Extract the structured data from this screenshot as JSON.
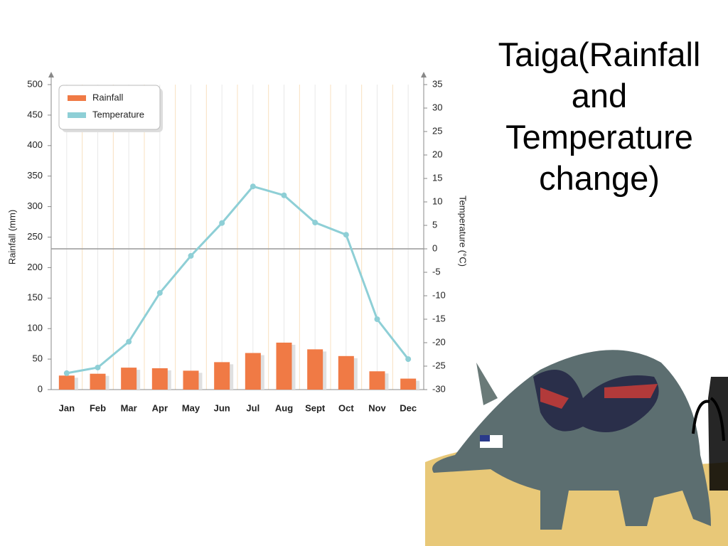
{
  "title": "Taiga(Rainfall and Temperature change)",
  "chart_data": {
    "type": "bar",
    "categories": [
      "Jan",
      "Feb",
      "Mar",
      "Apr",
      "May",
      "Jun",
      "Jul",
      "Aug",
      "Sept",
      "Oct",
      "Nov",
      "Dec"
    ],
    "y_label": "Rainfall (mm)",
    "y2_label": "Temperature (°C)",
    "ylim": [
      0,
      500
    ],
    "yticks": [
      0,
      50,
      100,
      150,
      200,
      250,
      300,
      350,
      400,
      450,
      500
    ],
    "y2lim": [
      -30,
      35
    ],
    "y2ticks": [
      -30,
      -25,
      -20,
      -15,
      -10,
      -5,
      0,
      5,
      10,
      15,
      20,
      25,
      30,
      35
    ],
    "legend": "upper left",
    "series": [
      {
        "name": "Rainfall",
        "type": "bar",
        "color": "#f07a45",
        "values": [
          23,
          26,
          36,
          35,
          31,
          45,
          60,
          77,
          66,
          55,
          30,
          18
        ]
      },
      {
        "name": "Temperature",
        "type": "line",
        "axis": "y2",
        "color": "#8ecfd6",
        "values": [
          -26.5,
          -25.3,
          -19.8,
          -9.4,
          -1.5,
          5.5,
          13.3,
          11.4,
          5.6,
          3,
          -15,
          -23.5
        ]
      }
    ]
  }
}
